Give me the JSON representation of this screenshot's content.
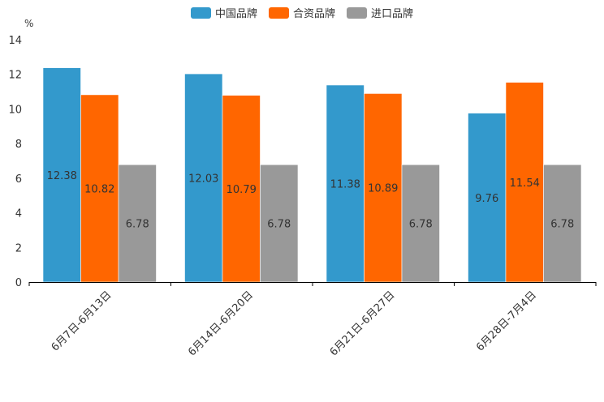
{
  "chart_data": {
    "type": "bar",
    "unit": "%",
    "categories": [
      "6月7日-6月13日",
      "6月14日-6月20日",
      "6月21日-6月27日",
      "6月28日-7月4日"
    ],
    "series": [
      {
        "name": "中国品牌",
        "color": "#3399cc",
        "values": [
          12.38,
          12.03,
          11.38,
          9.76
        ]
      },
      {
        "name": "合资品牌",
        "color": "#ff6600",
        "values": [
          10.82,
          10.79,
          10.89,
          11.54
        ]
      },
      {
        "name": "进口品牌",
        "color": "#999999",
        "values": [
          6.78,
          6.78,
          6.78,
          6.78
        ]
      }
    ],
    "ylim": [
      0,
      14
    ],
    "yticks": [
      0,
      2,
      4,
      6,
      8,
      10,
      12,
      14
    ],
    "legend_position": "top"
  }
}
